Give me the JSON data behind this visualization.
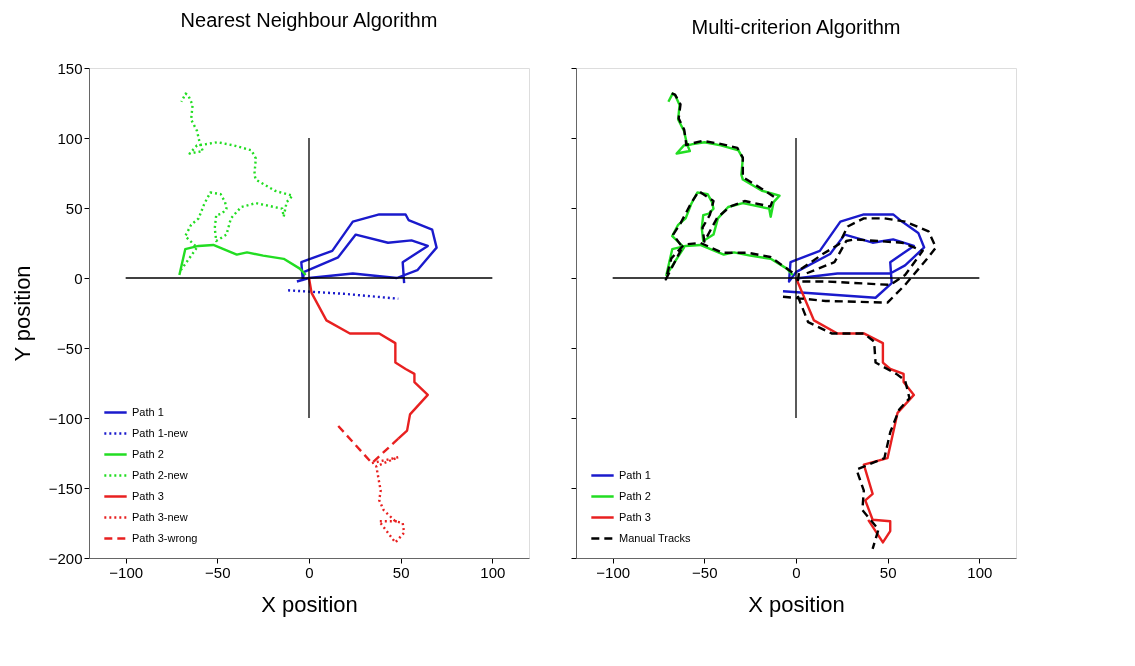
{
  "chart_data": [
    {
      "type": "line",
      "title": "Nearest Neighbour Algorithm",
      "xlabel": "X position",
      "ylabel": "Y position",
      "xlim": [
        -120,
        120
      ],
      "ylim": [
        -200,
        150
      ],
      "xticks": [
        -100,
        -50,
        0,
        50,
        100
      ],
      "yticks": [
        -200,
        -150,
        -100,
        -50,
        0,
        50,
        100,
        150
      ],
      "legend": "bottom left",
      "marker": "none",
      "grid": false,
      "series": [
        {
          "color": "#000000",
          "line_style": "solid",
          "x": [
            -100,
            100
          ],
          "values": [
            0,
            0
          ]
        },
        {
          "color": "#000000",
          "line_style": "solid",
          "x": [
            0,
            0
          ],
          "values": [
            -100,
            100
          ]
        },
        {
          "name": "Path 1",
          "color": "#1a1acc",
          "line_style": "solid",
          "x": [
            -6.6,
            0,
            23.9,
            47.9,
            59.1,
            69.6,
            67.2,
            54.3,
            52.7,
            38.3,
            23.9,
            12.7,
            -4.2,
            -3.4,
            -2.6,
            15.9,
            25.5,
            43.1,
            55.9,
            64.8,
            51.1,
            51.9
          ],
          "values": [
            -2.5,
            0,
            3.2,
            0,
            5.6,
            21.7,
            34.5,
            41.4,
            45.4,
            45.4,
            40.3,
            19.4,
            11.3,
            -1.4,
            4.4,
            14.8,
            31.0,
            25.2,
            26.9,
            22.9,
            11.3,
            -3.7
          ]
        },
        {
          "name": "Path 1-new",
          "color": "#1a1acc",
          "line_style": "dotted",
          "x": [
            -11.4,
            19.1,
            48.7
          ],
          "values": [
            -8.8,
            -11.3,
            -14.8
          ]
        },
        {
          "name": "Path 2",
          "color": "#22dd22",
          "line_style": "solid",
          "x": [
            -70.7,
            -67.5,
            -60.3,
            -52.2,
            -39.4,
            -33.8,
            -25,
            -13.8,
            -5.0,
            -1.8
          ],
          "values": [
            2.1,
            20.6,
            22.9,
            23.6,
            16.7,
            18.3,
            16.0,
            13.7,
            6.7,
            2.1
          ]
        },
        {
          "name": "Path 2-new",
          "color": "#22dd22",
          "line_style": "dotted",
          "x": [
            -69.9,
            -61.1,
            -67.5,
            -64.3,
            -60.2,
            -57.1,
            -53.8,
            -48.2,
            -45.8,
            -45.0,
            -47.5,
            -50.6,
            -51.4,
            -50.6,
            -45.0,
            -42.6,
            -37.0,
            -29.0,
            -14.6,
            -13.8,
            -12.2,
            -9.0,
            -18.6,
            -29.0,
            -29.8,
            -29.0,
            -31.4,
            -41.0,
            -49.9,
            -57.1,
            -61.1,
            -65.1,
            -57.9,
            -59.5,
            -61.1,
            -64.3,
            -63.5,
            -65.9,
            -67.3,
            -69.6
          ],
          "values": [
            5.6,
            21.8,
            29.9,
            38.0,
            42.6,
            53.0,
            61.1,
            59.9,
            54.2,
            49.5,
            46.0,
            44.9,
            35.6,
            26.4,
            31.0,
            42.6,
            50.7,
            53.5,
            49.5,
            43.8,
            54.2,
            58.8,
            62.3,
            70.3,
            73.8,
            85.4,
            91.2,
            94.7,
            97.0,
            95.4,
            94.7,
            88.9,
            90.7,
            95.8,
            105.1,
            113.2,
            123.6,
            130.6,
            131.7,
            125.9
          ]
        },
        {
          "name": "Path 3",
          "color": "#e82020",
          "line_style": "solid",
          "x": [
            0,
            1.4,
            9.5,
            22.3,
            38.3,
            47.1,
            47.1,
            52.7,
            57.5,
            57.5,
            64.8,
            55.1,
            53.5,
            48.7
          ],
          "values": [
            0,
            -10.6,
            -30.3,
            -39.6,
            -39.6,
            -46.5,
            -60.4,
            -65.0,
            -68.5,
            -74.3,
            -83.5,
            -97.4,
            -109.0,
            -114.8
          ]
        },
        {
          "name": "Path 3-new",
          "color": "#e82020",
          "line_style": "dotted",
          "x": [
            34.3,
            48.7,
            36.7,
            39.1,
            38.3,
            40.7,
            47.1,
            51.1,
            51.9,
            47.1,
            38.3,
            47.9
          ],
          "values": [
            -132.2,
            -128.0,
            -134.5,
            -151.9,
            -158.8,
            -165.8,
            -173.8,
            -175.0,
            -181.9,
            -188.9,
            -173.8,
            -173.8
          ]
        },
        {
          "name": "Path 3-wrong",
          "color": "#e82020",
          "line_style": "dashed",
          "x": [
            48.7,
            34.3,
            15.9
          ],
          "values": [
            -114.8,
            -132.2,
            -105.6
          ]
        }
      ]
    },
    {
      "type": "line",
      "title": "Multi-criterion Algorithm",
      "xlabel": "X position",
      "xlim": [
        -120,
        120
      ],
      "ylim": [
        -200,
        150
      ],
      "xticks": [
        -100,
        -50,
        0,
        50,
        100
      ],
      "yticks": [
        -200,
        -150,
        -100,
        -50,
        0,
        50,
        100,
        150
      ],
      "tick_labels": "x",
      "legend": "bottom left",
      "marker": "none",
      "grid": false,
      "series": [
        {
          "color": "#000000",
          "line_style": "solid",
          "x": [
            -100,
            100
          ],
          "values": [
            0,
            0
          ]
        },
        {
          "color": "#000000",
          "line_style": "solid",
          "x": [
            0,
            0
          ],
          "values": [
            -100,
            100
          ]
        },
        {
          "name": "Path 1",
          "color": "#1a1acc",
          "line_style": "solid",
          "x": [
            -7.1,
            43.4,
            52.2,
            51.4,
            64.3,
            53.0,
            41.8,
            26.6,
            18.6,
            0.2,
            -3.8,
            -3.0,
            13.0,
            24.2,
            37.0,
            53.0,
            57.8,
            66.7,
            69.9,
            59.5,
            51.4,
            22.6,
            1.0
          ],
          "values": [
            -9.5,
            -14.1,
            -3.7,
            11.3,
            22.9,
            27.6,
            25.2,
            31.0,
            17.1,
            4.4,
            -2.5,
            11.3,
            19.4,
            40.3,
            45.4,
            45.4,
            40.3,
            32.2,
            21.8,
            9.0,
            3.2,
            3.2,
            -0.2
          ]
        },
        {
          "name": "Path 2",
          "color": "#22dd22",
          "line_style": "solid",
          "x": [
            -1.8,
            -5.0,
            -13.8,
            -25,
            -33.8,
            -39.4,
            -52.2,
            -60.3,
            -67.5,
            -70.7,
            -61.1,
            -67.5,
            -64.3,
            -60.2,
            -57.1,
            -53.8,
            -48.2,
            -45.8,
            -45.0,
            -47.5,
            -50.6,
            -51.4,
            -50.6,
            -45.0,
            -42.6,
            -37.0,
            -29.0,
            -14.6,
            -13.8,
            -12.2,
            -9.0,
            -18.6,
            -29.0,
            -29.8,
            -29.0,
            -31.4,
            -41.0,
            -49.9,
            -57.1,
            -61.1,
            -65.1,
            -57.9,
            -59.5,
            -61.1,
            -64.3,
            -63.5,
            -65.9,
            -67.3,
            -69.6
          ],
          "values": [
            2.1,
            6.7,
            13.7,
            16.0,
            18.3,
            16.7,
            23.6,
            22.9,
            20.6,
            2.1,
            21.8,
            29.9,
            38.0,
            42.6,
            53.0,
            61.1,
            59.9,
            54.2,
            49.5,
            46.0,
            44.9,
            35.6,
            26.4,
            31.0,
            42.6,
            50.7,
            53.5,
            49.5,
            43.8,
            54.2,
            58.8,
            62.3,
            70.3,
            73.8,
            85.4,
            91.2,
            94.7,
            97.0,
            95.4,
            94.7,
            88.9,
            90.7,
            95.8,
            105.1,
            113.2,
            123.6,
            130.6,
            131.7,
            125.9
          ]
        },
        {
          "name": "Path 3",
          "color": "#e82020",
          "line_style": "solid",
          "x": [
            0,
            9.8,
            22.6,
            37.0,
            47.4,
            47.4,
            51.4,
            58.7,
            58.7,
            64.3,
            55.4,
            49.9,
            37.0,
            41.8,
            37.8,
            41.8,
            51.4,
            51.4,
            47.4,
            39.4
          ],
          "values": [
            0,
            -30.3,
            -39.6,
            -39.6,
            -46.5,
            -60.4,
            -65.0,
            -68.5,
            -74.3,
            -83.5,
            -96.3,
            -128.7,
            -133.3,
            -154.2,
            -158.8,
            -172.7,
            -173.8,
            -180.8,
            -188.9,
            -172.7
          ]
        },
        {
          "name": "Manual Tracks",
          "color": "#000000",
          "line_style": "dashed",
          "x": [
            -7.1,
            16.2,
            49.9,
            59.5,
            71.5,
            76.3,
            72.3,
            59.5,
            48.2,
            37.0,
            28.2,
            23.4,
            14.6,
            1.8,
            1.0,
            16.2,
            51.4,
            59.5,
            69.1,
            57.8,
            32.2,
            27.4,
            21.0,
            3.4,
            null,
            -2,
            -14,
            -26,
            -40,
            -52,
            -61,
            -68,
            -71,
            -62,
            -67,
            -63,
            -57,
            -53,
            -45,
            -47,
            -51,
            -50,
            -43,
            -36,
            -28,
            -14,
            -12,
            -19,
            -29,
            -29,
            -32,
            -42,
            -51,
            -60,
            -60,
            -61,
            -64,
            -63,
            -66,
            -68,
            null,
            0.96,
            6.6,
            19.4,
            37.0,
            42.6,
            43.4,
            54.7,
            59.5,
            61.9,
            56.3,
            51.4,
            48.2,
            33.0,
            37.0,
            36.2,
            45.0,
            41.8
          ],
          "values": [
            -13.4,
            -16.4,
            -17.6,
            -4.9,
            13.7,
            21.8,
            33.3,
            40.3,
            42.6,
            42.6,
            36.8,
            24.1,
            17.1,
            5.6,
            -2.5,
            -2.5,
            -4.9,
            2.1,
            19.4,
            25.2,
            27.6,
            26.4,
            11.3,
            2.1,
            null,
            4,
            15,
            18,
            18,
            25,
            24,
            14,
            -1,
            22,
            31,
            39,
            54,
            62,
            55,
            45,
            36,
            26,
            43,
            51,
            55,
            51,
            58,
            64,
            72,
            86,
            93,
            96,
            98,
            95,
            97,
            106,
            114,
            124,
            131,
            132,
            null,
            -12.9,
            -31.5,
            -39.6,
            -39.6,
            -45.4,
            -60.4,
            -68.5,
            -73.1,
            -85.9,
            -93.9,
            -110.2,
            -128.7,
            -136.8,
            -151.9,
            -165.8,
            -179.6,
            -193.5
          ]
        }
      ]
    }
  ]
}
